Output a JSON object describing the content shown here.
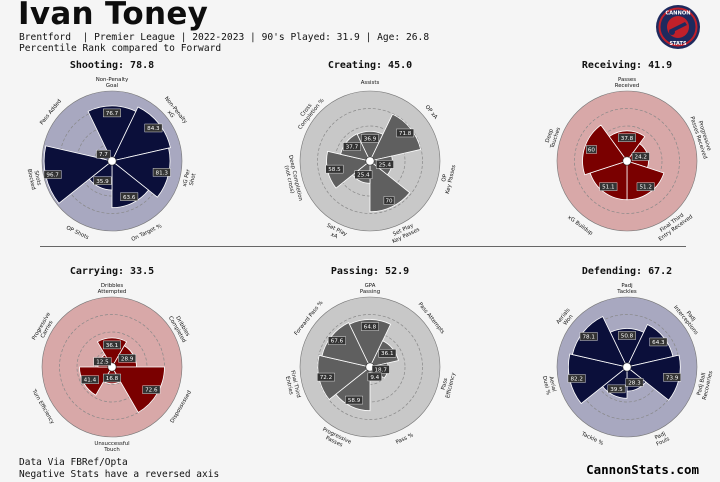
{
  "header": {
    "player": "Ivan Toney",
    "line1": "Brentford  | Premier League | 2022-2023 | 90's Played: 31.9 | Age: 26.8",
    "line2": "Percentile Rank compared to Forward",
    "logo_top": "CANNON",
    "logo_bottom": "STATS"
  },
  "footer": {
    "source": "Data Via FBRef/Opta",
    "note": "Negative Stats have a reversed axis",
    "brand": "CannonStats.com"
  },
  "colors": {
    "navy_fill": "#0b0f3a",
    "navy_bg": "#a8a8c0",
    "grey_fill": "#5f5f5f",
    "grey_bg": "#c8c8c8",
    "red_fill": "#7a0000",
    "red_bg": "#d8a8a8"
  },
  "chart_data": [
    {
      "type": "polar-bar",
      "title": "Shooting: 78.8",
      "theme": "navy",
      "categories": [
        "Non-Penalty\nGoal",
        "Non-Penalty\nxG",
        "xG Per\nShot",
        "On Target %",
        "OP Shots",
        "Shots\nBlocked",
        "Pass Added"
      ],
      "values": [
        76.7,
        84.3,
        81.3,
        63.6,
        35.9,
        96.7,
        7.7
      ]
    },
    {
      "type": "polar-bar",
      "title": "Creating: 45.0",
      "theme": "grey",
      "categories": [
        "Assists",
        "OP xA",
        "OP\nKey Passes",
        "Set Play\nKey Passes",
        "Set Play\nxA",
        "Deep Completion\n(not cross)",
        "Cross\nCompletion %"
      ],
      "values": [
        36.9,
        71.8,
        25.4,
        70.0,
        25.4,
        58.5,
        37.7
      ]
    },
    {
      "type": "polar-bar",
      "title": "Receiving: 41.9",
      "theme": "red",
      "categories": [
        "Passes\nReceived",
        "Progressive\nPasses Received",
        "Final Third\nEntry Received",
        "xG Buildup",
        "Deep\nTouches"
      ],
      "values": [
        37.8,
        24.2,
        51.2,
        51.1,
        60.0
      ]
    },
    {
      "type": "polar-bar",
      "title": "Carrying: 33.5",
      "theme": "red",
      "categories": [
        "Dribbles\nAttempted",
        "Dribbles\nCompleted",
        "Dispossessed",
        "Unsuccessful\nTouch",
        "Turn Efficiency",
        "Progressive\nCarries"
      ],
      "values": [
        36.1,
        28.9,
        72.6,
        16.8,
        41.4,
        12.5
      ]
    },
    {
      "type": "polar-bar",
      "title": "Passing: 52.9",
      "theme": "grey",
      "categories": [
        "GPA\nPassing",
        "Pass Attempts",
        "Pass\nEfficiency",
        "Pass %",
        "Progressive\nPasses",
        "Final Third\nEntries",
        "Forward Pass %"
      ],
      "values": [
        64.8,
        36.1,
        18.7,
        9.4,
        58.9,
        72.2,
        67.6
      ]
    },
    {
      "type": "polar-bar",
      "title": "Defending: 67.2",
      "theme": "navy",
      "categories": [
        "Padj\nTackles",
        "Padj\nInterceptions",
        "Padj Ball\nRecoveries",
        "Padj\nFouls",
        "Tackle %",
        "Aerial\nDuel %",
        "Aerials\nWon"
      ],
      "values": [
        50.8,
        64.3,
        73.9,
        28.3,
        39.5,
        82.2,
        78.1
      ]
    }
  ]
}
